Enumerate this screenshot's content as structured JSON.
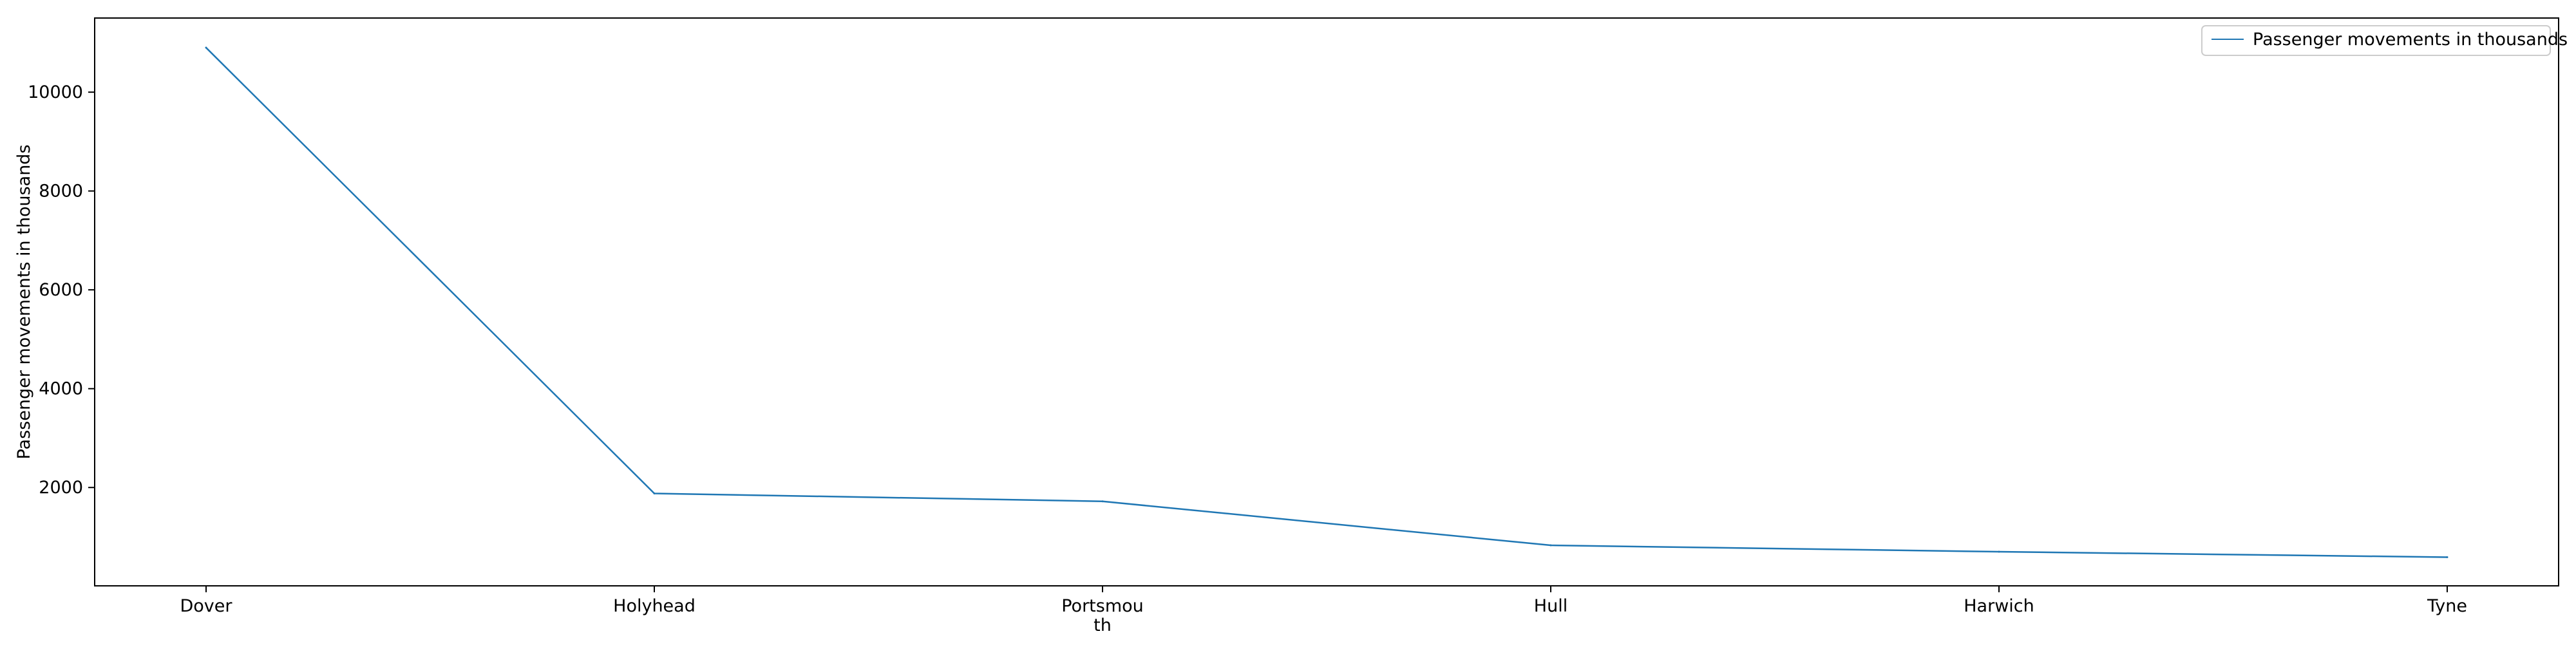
{
  "chart_data": {
    "type": "line",
    "categories": [
      "Dover",
      "Holyhead",
      "Portsmouth",
      "Hull",
      "Harwich",
      "Tyne"
    ],
    "category_tick_lines": [
      [
        "Dover"
      ],
      [
        "Holyhead"
      ],
      [
        "Portsmou",
        "th"
      ],
      [
        "Hull"
      ],
      [
        "Harwich"
      ],
      [
        "Tyne"
      ]
    ],
    "series": [
      {
        "name": "Passenger movements in thousands",
        "values": [
          10900,
          1880,
          1720,
          830,
          700,
          590
        ],
        "color": "#1f77b4"
      }
    ],
    "xlabel": "",
    "ylabel": "Passenger movements in thousands",
    "ylim": [
      10,
      11500
    ],
    "yticks": [
      2000,
      4000,
      6000,
      8000,
      10000
    ],
    "grid": false,
    "legend_position": "top-right"
  }
}
